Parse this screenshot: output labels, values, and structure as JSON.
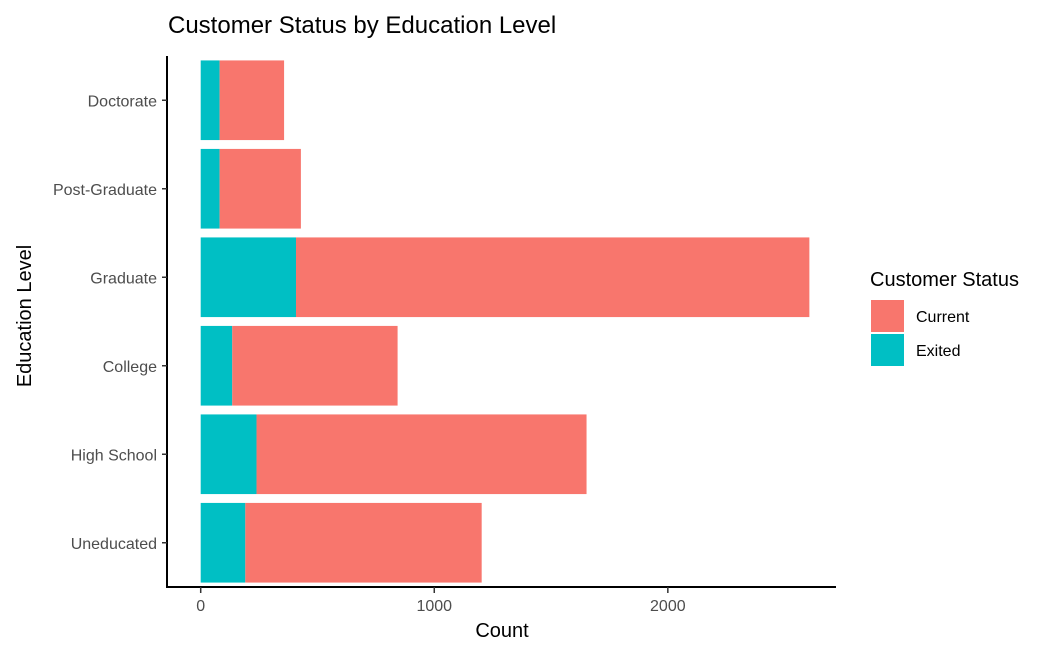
{
  "chart_data": {
    "type": "bar",
    "orientation": "horizontal",
    "stacked": true,
    "title": "Customer Status by Education Level",
    "xlabel": "Count",
    "ylabel": "Education Level",
    "categories": [
      "Doctorate",
      "Post-Graduate",
      "Graduate",
      "College",
      "High School",
      "Uneducated"
    ],
    "series": [
      {
        "name": "Exited",
        "color": "#00BFC4",
        "values": [
          81,
          81,
          408,
          135,
          239,
          191
        ]
      },
      {
        "name": "Current",
        "color": "#F8766D",
        "values": [
          276,
          348,
          2198,
          708,
          1413,
          1012
        ]
      }
    ],
    "xlim": [
      -140,
      2720
    ],
    "xticks": [
      0,
      1000,
      2000
    ],
    "grid": false,
    "legend": {
      "title": "Customer Status",
      "position": "right",
      "items": [
        {
          "label": "Current",
          "color": "#F8766D"
        },
        {
          "label": "Exited",
          "color": "#00BFC4"
        }
      ]
    }
  }
}
